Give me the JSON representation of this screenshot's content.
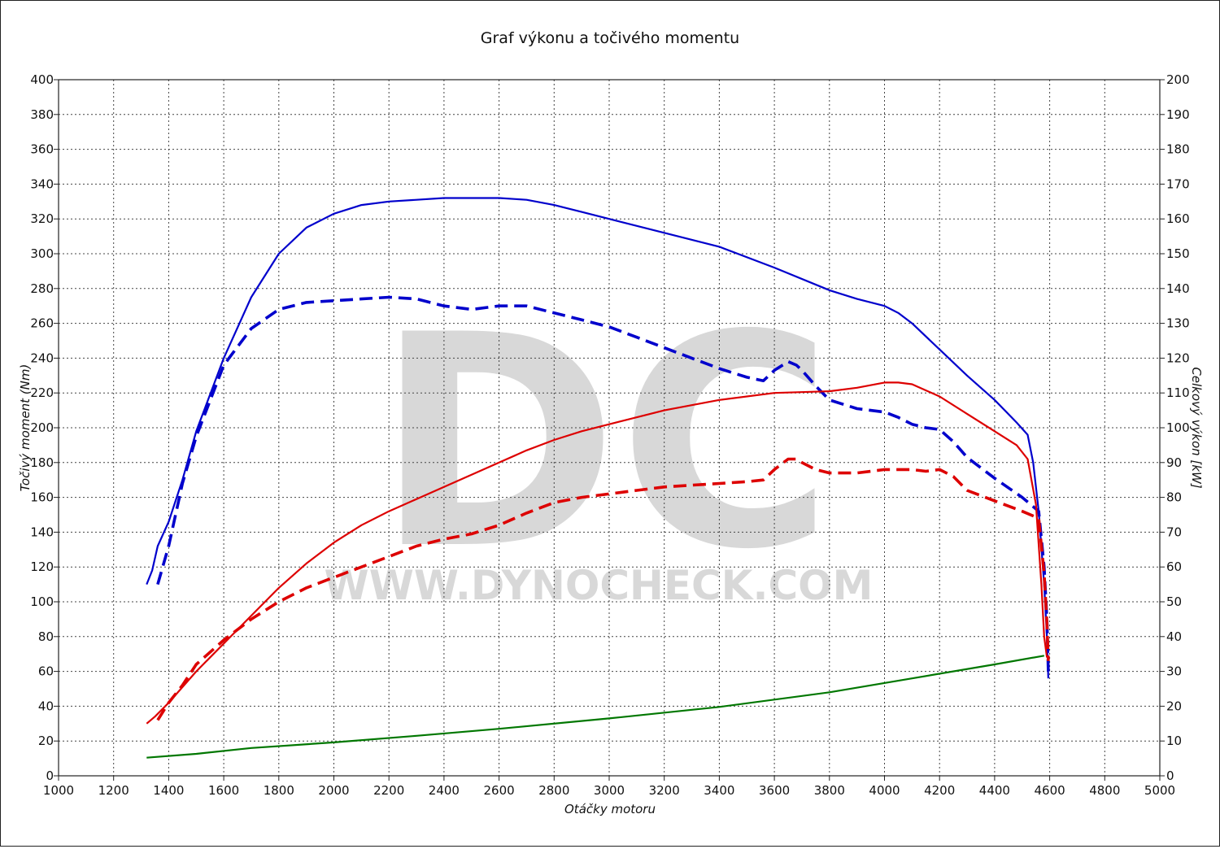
{
  "chart_data": {
    "type": "line",
    "title": "Graf výkonu a točivého momentu",
    "xlabel": "Otáčky motoru",
    "ylabel_left": "Točivý moment (Nm)",
    "ylabel_right": "Celkový výkon [kW]",
    "xlim": [
      1000,
      5000
    ],
    "ylim_left": [
      0,
      400
    ],
    "ylim_right": [
      0,
      200
    ],
    "x_ticks": [
      1000,
      1200,
      1400,
      1600,
      1800,
      2000,
      2200,
      2400,
      2600,
      2800,
      3000,
      3200,
      3400,
      3600,
      3800,
      4000,
      4200,
      4400,
      4600,
      4800,
      5000
    ],
    "y_ticks_left": [
      0,
      20,
      40,
      60,
      80,
      100,
      120,
      140,
      160,
      180,
      200,
      220,
      240,
      260,
      280,
      300,
      320,
      340,
      360,
      380,
      400
    ],
    "y_ticks_right": [
      0,
      10,
      20,
      30,
      40,
      50,
      60,
      70,
      80,
      90,
      100,
      110,
      120,
      130,
      140,
      150,
      160,
      170,
      180,
      190,
      200
    ],
    "grid": true,
    "watermark": {
      "letters": "DC",
      "url": "WWW.DYNOCHECK.COM"
    },
    "series": [
      {
        "axis": "left",
        "color": "#0000cc",
        "style": "solid",
        "x": [
          1320,
          1340,
          1360,
          1400,
          1450,
          1500,
          1600,
          1700,
          1800,
          1900,
          2000,
          2100,
          2200,
          2300,
          2400,
          2500,
          2600,
          2700,
          2800,
          2900,
          3000,
          3200,
          3400,
          3600,
          3800,
          3900,
          4000,
          4050,
          4100,
          4200,
          4300,
          4400,
          4480,
          4520,
          4540,
          4560,
          4580,
          4590,
          4595
        ],
        "y": [
          110,
          118,
          132,
          146,
          170,
          198,
          240,
          275,
          300,
          315,
          323,
          328,
          330,
          331,
          332,
          332,
          332,
          331,
          328,
          324,
          320,
          312,
          304,
          292,
          279,
          274,
          270,
          266,
          260,
          245,
          230,
          216,
          203,
          196,
          180,
          152,
          110,
          80,
          56
        ]
      },
      {
        "axis": "left",
        "color": "#0000cc",
        "style": "dashed",
        "x": [
          1360,
          1400,
          1450,
          1500,
          1600,
          1700,
          1800,
          1900,
          2000,
          2100,
          2200,
          2300,
          2400,
          2500,
          2600,
          2700,
          2800,
          2900,
          3000,
          3100,
          3200,
          3300,
          3400,
          3500,
          3560,
          3600,
          3650,
          3680,
          3700,
          3750,
          3800,
          3900,
          4000,
          4050,
          4100,
          4150,
          4200,
          4250,
          4300,
          4400,
          4500,
          4560,
          4580,
          4590,
          4595
        ],
        "y": [
          110,
          132,
          168,
          195,
          236,
          257,
          268,
          272,
          273,
          274,
          275,
          274,
          270,
          268,
          270,
          270,
          266,
          262,
          258,
          252,
          246,
          240,
          234,
          229,
          227,
          233,
          238,
          236,
          233,
          224,
          216,
          211,
          209,
          206,
          202,
          200,
          199,
          192,
          183,
          171,
          160,
          152,
          120,
          90,
          60
        ]
      },
      {
        "axis": "right",
        "color": "#dd0000",
        "style": "solid",
        "x": [
          1320,
          1350,
          1400,
          1500,
          1600,
          1700,
          1800,
          1900,
          2000,
          2100,
          2200,
          2300,
          2400,
          2500,
          2600,
          2700,
          2800,
          2900,
          3000,
          3200,
          3400,
          3600,
          3800,
          3900,
          4000,
          4050,
          4100,
          4200,
          4300,
          4400,
          4480,
          4520,
          4550,
          4570,
          4580,
          4590
        ],
        "y": [
          15,
          17,
          21,
          30,
          38,
          46,
          54,
          61,
          67,
          72,
          76,
          79.5,
          83,
          86.5,
          90,
          93.5,
          96.5,
          99,
          101,
          105,
          108,
          110,
          110.5,
          111.5,
          113,
          113,
          112.5,
          109,
          104,
          99,
          95,
          91,
          78,
          55,
          40,
          34
        ]
      },
      {
        "axis": "right",
        "color": "#dd0000",
        "style": "dashed",
        "x": [
          1360,
          1400,
          1450,
          1500,
          1600,
          1700,
          1800,
          1900,
          2000,
          2100,
          2200,
          2300,
          2400,
          2500,
          2600,
          2700,
          2800,
          2900,
          3000,
          3100,
          3200,
          3300,
          3400,
          3500,
          3560,
          3600,
          3650,
          3680,
          3700,
          3750,
          3800,
          3900,
          4000,
          4050,
          4100,
          4150,
          4200,
          4250,
          4300,
          4400,
          4500,
          4560,
          4580,
          4590,
          4595
        ],
        "y": [
          16,
          21,
          26,
          32,
          39,
          45,
          50,
          54,
          57,
          60,
          63,
          66,
          68,
          69.5,
          72,
          75.5,
          78.5,
          80,
          81,
          82,
          83,
          83.5,
          84,
          84.5,
          85,
          88,
          91,
          91,
          90,
          88,
          87,
          87,
          88,
          88,
          88,
          87.5,
          88,
          86,
          82,
          79,
          76,
          74,
          58,
          44,
          33
        ]
      },
      {
        "axis": "right",
        "color": "#007700",
        "style": "solid",
        "x": [
          1320,
          1500,
          1700,
          2000,
          2300,
          2600,
          3000,
          3400,
          3800,
          4100,
          4400,
          4580
        ],
        "y": [
          5.2,
          6.3,
          8,
          9.6,
          11.5,
          13.5,
          16.5,
          19.8,
          24,
          28,
          32,
          34.5
        ]
      }
    ]
  }
}
